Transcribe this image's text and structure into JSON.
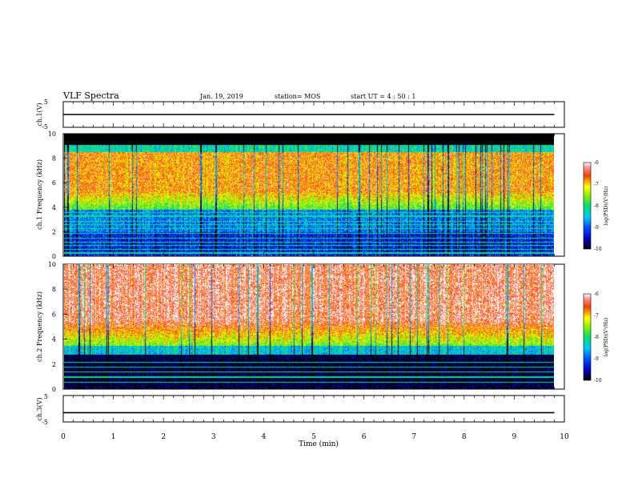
{
  "header": {
    "title": "VLF Spectra",
    "date": "Jan. 19, 2019",
    "station": "station= MOS",
    "start": "start  UT =   4 : 50 : 1"
  },
  "chart_data": [
    {
      "id": "ch1-waveform",
      "type": "line",
      "ylabel": "ch.1(V)",
      "ylim": [
        -5,
        5
      ],
      "yticks": [
        5,
        -5
      ],
      "xlim": [
        0,
        10
      ],
      "series": [
        {
          "x": [
            0,
            9.8
          ],
          "y": [
            0,
            0
          ]
        }
      ]
    },
    {
      "id": "ch1-spectrogram",
      "type": "heatmap",
      "ylabel": "ch.1  Frequency (kHz)",
      "ylim": [
        0,
        10
      ],
      "yticks": [
        0,
        2,
        4,
        6,
        8,
        10
      ],
      "xlim": [
        0,
        10
      ],
      "colorbar": {
        "label": "log(PSD)(V²/Hz)",
        "range": [
          -10,
          -6
        ],
        "ticks": [
          -6,
          -7,
          -8,
          -9,
          -10
        ]
      }
    },
    {
      "id": "ch2-spectrogram",
      "type": "heatmap",
      "ylabel": "ch.2  Frequency (kHz)",
      "ylim": [
        0,
        10
      ],
      "yticks": [
        0,
        2,
        4,
        6,
        8,
        10
      ],
      "xlim": [
        0,
        10
      ],
      "colorbar": {
        "label": "log(PSD)(V²/Hz)",
        "range": [
          -10,
          -6
        ],
        "ticks": [
          -6,
          -7,
          -8,
          -9,
          -10
        ]
      }
    },
    {
      "id": "ch3-waveform",
      "type": "line",
      "ylabel": "ch.3(V)",
      "ylim": [
        -5,
        5
      ],
      "yticks": [
        5,
        -5
      ],
      "xlim": [
        0,
        10
      ],
      "series": [
        {
          "x": [
            0,
            9.8
          ],
          "y": [
            -1.5,
            -1.5
          ]
        }
      ]
    }
  ],
  "xaxis": {
    "label": "Time  (min)",
    "ticks": [
      0,
      1,
      2,
      3,
      4,
      5,
      6,
      7,
      8,
      9,
      10
    ]
  }
}
